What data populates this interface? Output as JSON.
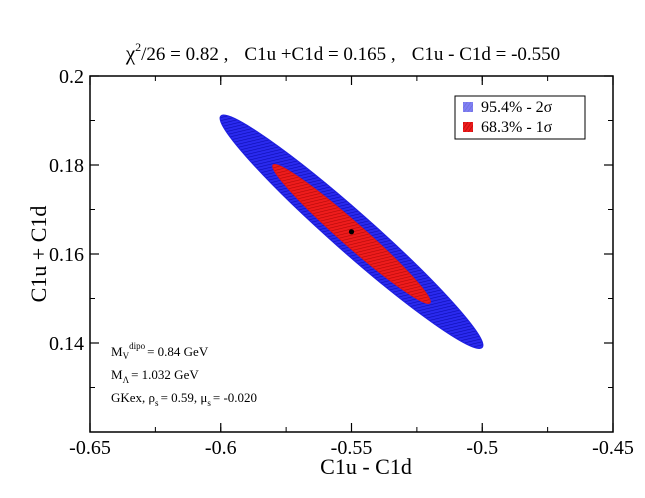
{
  "chart_data": {
    "type": "scatter",
    "title": {
      "chi_symbol": "χ",
      "chi_exp": "2",
      "chi_rest": "/26 = 0.82 ,",
      "sum_part": "C1u +C1d = 0.165 ,",
      "diff_part": "C1u - C1d = -0.550"
    },
    "xlabel": "C1u - C1d",
    "ylabel": "C1u + C1d",
    "xlim": [
      -0.65,
      -0.45
    ],
    "ylim": [
      0.12,
      0.2
    ],
    "xticks": [
      -0.65,
      -0.6,
      -0.55,
      -0.5,
      -0.45
    ],
    "xtick_labels": [
      "-0.65",
      "-0.6",
      "-0.55",
      "-0.5",
      "-0.45"
    ],
    "yticks": [
      0.14,
      0.16,
      0.18,
      0.2
    ],
    "ytick_labels": [
      "0.14",
      "0.16",
      "0.18",
      "0.2"
    ],
    "grid": false,
    "legend_position": "top-right",
    "series": [
      {
        "name": "95.4% - 2σ",
        "color": "#1f1fe0",
        "ends": [
          [
            -0.6,
            0.191
          ],
          [
            -0.5,
            0.139
          ]
        ],
        "minor_halfwidth": 0.0045
      },
      {
        "name": "68.3% - 1σ",
        "color": "#e01414",
        "ends": [
          [
            -0.58,
            0.18
          ],
          [
            -0.52,
            0.149
          ]
        ],
        "minor_halfwidth": 0.0026
      }
    ],
    "best_fit": {
      "x": -0.55,
      "y": 0.165,
      "color": "#000000"
    },
    "annotations": {
      "line1_main": "M",
      "line1_sub": "V",
      "line1_sup": "dipo",
      "line1_rest": "= 0.84 GeV",
      "line2_main": "M",
      "line2_sub": "Λ",
      "line2_rest": "= 1.032 GeV",
      "line3_a": "GKex,  ρ",
      "line3_a_sub": "s",
      "line3_b": "= 0.59,  μ",
      "line3_b_sub": "s",
      "line3_c": "= -0.020"
    }
  }
}
